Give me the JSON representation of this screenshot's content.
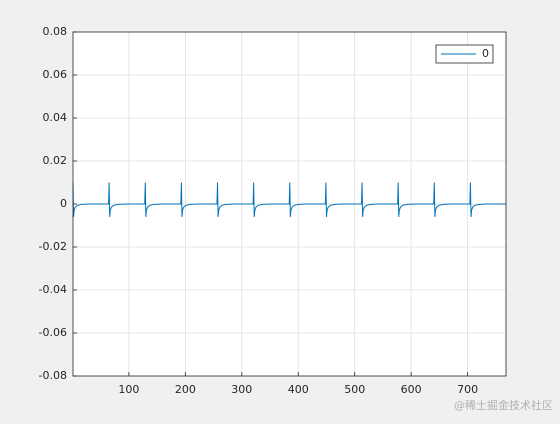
{
  "chart_data": {
    "type": "line",
    "x": [
      1,
      2,
      3,
      5,
      9,
      17,
      31,
      64,
      65,
      66,
      67,
      69,
      73,
      81,
      95,
      128,
      129,
      130,
      131,
      133,
      137,
      145,
      159,
      192,
      193,
      194,
      195,
      197,
      201,
      209,
      223,
      256,
      257,
      258,
      259,
      261,
      265,
      273,
      287,
      320,
      321,
      322,
      323,
      325,
      329,
      337,
      351,
      384,
      385,
      386,
      387,
      389,
      393,
      401,
      415,
      448,
      449,
      450,
      451,
      453,
      457,
      465,
      479,
      512,
      513,
      514,
      515,
      517,
      521,
      529,
      543,
      576,
      577,
      578,
      579,
      581,
      585,
      593,
      607,
      640,
      641,
      642,
      643,
      645,
      649,
      657,
      671,
      704,
      705,
      706,
      707,
      709,
      713,
      721,
      735,
      768
    ],
    "series": [
      {
        "name": "0",
        "color": "#0072bd",
        "values": [
          0.01,
          -0.006,
          -0.003,
          -0.0015,
          -0.0006,
          -0.0002,
          0,
          0,
          0.01,
          -0.006,
          -0.003,
          -0.0015,
          -0.0006,
          -0.0002,
          0,
          0,
          0.01,
          -0.006,
          -0.003,
          -0.0015,
          -0.0006,
          -0.0002,
          0,
          0,
          0.01,
          -0.006,
          -0.003,
          -0.0015,
          -0.0006,
          -0.0002,
          0,
          0,
          0.01,
          -0.006,
          -0.003,
          -0.0015,
          -0.0006,
          -0.0002,
          0,
          0,
          0.01,
          -0.006,
          -0.003,
          -0.0015,
          -0.0006,
          -0.0002,
          0,
          0,
          0.01,
          -0.006,
          -0.003,
          -0.0015,
          -0.0006,
          -0.0002,
          0,
          0,
          0.01,
          -0.006,
          -0.003,
          -0.0015,
          -0.0006,
          -0.0002,
          0,
          0,
          0.01,
          -0.006,
          -0.003,
          -0.0015,
          -0.0006,
          -0.0002,
          0,
          0,
          0.01,
          -0.006,
          -0.003,
          -0.0015,
          -0.0006,
          -0.0002,
          0,
          0,
          0.01,
          -0.006,
          -0.003,
          -0.0015,
          -0.0006,
          -0.0002,
          0,
          0,
          0.01,
          -0.006,
          -0.003,
          -0.0015,
          -0.0006,
          -0.0002,
          0,
          0
        ]
      }
    ],
    "xlim": [
      1,
      768
    ],
    "xticks": [
      100,
      200,
      300,
      400,
      500,
      600,
      700
    ],
    "ylim": [
      -0.08,
      0.08
    ],
    "yticks": [
      -0.08,
      -0.06,
      -0.04,
      -0.02,
      0,
      0.02,
      0.04,
      0.06,
      0.08
    ],
    "grid": true,
    "legend": "top-right"
  },
  "watermark": "@稀土掘金技术社区"
}
